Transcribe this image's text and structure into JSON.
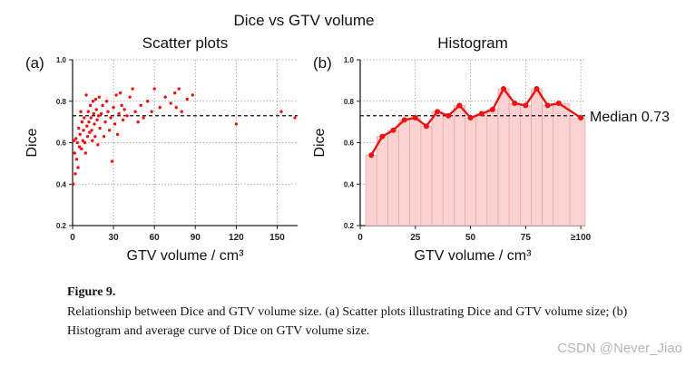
{
  "figure": {
    "suptitle": "Dice vs GTV volume",
    "caption_label": "Figure 9.",
    "caption_text": "Relationship between Dice and GTV volume size. (a) Scatter plots illustrating Dice and GTV volume size; (b) Histogram and average curve of Dice on GTV volume size.",
    "watermark": "CSDN @Never_Jiao",
    "accent": "#ee1111",
    "fill": "#fbd2d2"
  },
  "chart_data": [
    {
      "type": "scatter",
      "panel": "(a)",
      "title": "Scatter plots",
      "xlabel": "GTV volume / cm³",
      "ylabel": "Dice",
      "xlim": [
        0,
        165
      ],
      "ylim": [
        0.2,
        1.0
      ],
      "xticks": [
        0,
        30,
        60,
        90,
        120,
        150
      ],
      "yticks": [
        "0.2",
        "0.4",
        "0.6",
        "0.8",
        "1.0"
      ],
      "grid": true,
      "median": 0.73,
      "points": [
        [
          0.5,
          0.4
        ],
        [
          1,
          0.61
        ],
        [
          1.5,
          0.55
        ],
        [
          2,
          0.45
        ],
        [
          2.5,
          0.62
        ],
        [
          3,
          0.52
        ],
        [
          3.5,
          0.6
        ],
        [
          4,
          0.48
        ],
        [
          4.5,
          0.67
        ],
        [
          5,
          0.58
        ],
        [
          5.5,
          0.64
        ],
        [
          6,
          0.75
        ],
        [
          6.5,
          0.57
        ],
        [
          7,
          0.7
        ],
        [
          7.5,
          0.61
        ],
        [
          8,
          0.66
        ],
        [
          8.5,
          0.72
        ],
        [
          9,
          0.6
        ],
        [
          9.5,
          0.55
        ],
        [
          10,
          0.83
        ],
        [
          10.5,
          0.68
        ],
        [
          11,
          0.63
        ],
        [
          11.5,
          0.75
        ],
        [
          12,
          0.7
        ],
        [
          12.5,
          0.65
        ],
        [
          13,
          0.78
        ],
        [
          13.5,
          0.72
        ],
        [
          14,
          0.66
        ],
        [
          14.5,
          0.61
        ],
        [
          15,
          0.8
        ],
        [
          15.5,
          0.74
        ],
        [
          16,
          0.69
        ],
        [
          16.5,
          0.63
        ],
        [
          17,
          0.81
        ],
        [
          17.5,
          0.76
        ],
        [
          18,
          0.71
        ],
        [
          18.5,
          0.59
        ],
        [
          19,
          0.73
        ],
        [
          19.5,
          0.82
        ],
        [
          20,
          0.67
        ],
        [
          21,
          0.74
        ],
        [
          22,
          0.78
        ],
        [
          23,
          0.63
        ],
        [
          24,
          0.7
        ],
        [
          25,
          0.8
        ],
        [
          26,
          0.75
        ],
        [
          27,
          0.66
        ],
        [
          28,
          0.72
        ],
        [
          29,
          0.51
        ],
        [
          30,
          0.77
        ],
        [
          31,
          0.69
        ],
        [
          32,
          0.83
        ],
        [
          33,
          0.64
        ],
        [
          34,
          0.74
        ],
        [
          35,
          0.84
        ],
        [
          36,
          0.78
        ],
        [
          37,
          0.71
        ],
        [
          38,
          0.76
        ],
        [
          40,
          0.73
        ],
        [
          42,
          0.82
        ],
        [
          44,
          0.86
        ],
        [
          46,
          0.75
        ],
        [
          48,
          0.7
        ],
        [
          50,
          0.78
        ],
        [
          52,
          0.72
        ],
        [
          55,
          0.8
        ],
        [
          58,
          0.75
        ],
        [
          60,
          0.86
        ],
        [
          64,
          0.77
        ],
        [
          68,
          0.82
        ],
        [
          72,
          0.79
        ],
        [
          75,
          0.84
        ],
        [
          76,
          0.77
        ],
        [
          78,
          0.86
        ],
        [
          80,
          0.75
        ],
        [
          84,
          0.81
        ],
        [
          88,
          0.83
        ],
        [
          120,
          0.69
        ],
        [
          153,
          0.75
        ],
        [
          163,
          0.72
        ]
      ]
    },
    {
      "type": "area",
      "panel": "(b)",
      "title": "Histogram",
      "xlabel": "GTV volume / cm³",
      "ylabel": "Dice",
      "xlim": [
        0,
        102
      ],
      "ylim": [
        0.2,
        1.0
      ],
      "xtick_values": [
        0,
        25,
        50,
        75,
        100
      ],
      "xticks": [
        "0",
        "25",
        "50",
        "75",
        "≥100"
      ],
      "yticks": [
        "0.2",
        "0.4",
        "0.6",
        "0.8",
        "1.0"
      ],
      "grid": true,
      "median": 0.73,
      "median_label": "Median 0.73",
      "x": [
        5,
        10,
        15,
        20,
        25,
        30,
        35,
        40,
        45,
        50,
        55,
        60,
        65,
        70,
        75,
        80,
        85,
        90,
        100
      ],
      "values": [
        0.54,
        0.63,
        0.66,
        0.71,
        0.72,
        0.68,
        0.75,
        0.73,
        0.78,
        0.72,
        0.74,
        0.76,
        0.86,
        0.79,
        0.78,
        0.86,
        0.78,
        0.79,
        0.72
      ]
    }
  ]
}
